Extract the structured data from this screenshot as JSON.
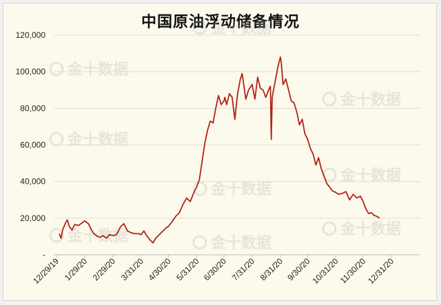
{
  "chart_data": {
    "type": "line",
    "title": "中国原油浮动储备情况",
    "xlabel": "",
    "ylabel": "",
    "y_tick_labels": [
      "-",
      "20,000",
      "40,000",
      "60,000",
      "80,000",
      "100,000",
      "120,000"
    ],
    "y_tick_values": [
      0,
      20000,
      40000,
      60000,
      80000,
      100000,
      120000
    ],
    "ylim": [
      0,
      120000
    ],
    "x_tick_labels": [
      "12/29/19",
      "1/29/20",
      "2/29/20",
      "3/31/20",
      "4/30/20",
      "5/31/20",
      "6/30/20",
      "7/31/20",
      "8/31/20",
      "9/30/20",
      "10/31/20",
      "11/30/20",
      "12/31/20"
    ],
    "grid": "horizontal",
    "line_color": "#b22314",
    "series": [
      {
        "x": [
          "2020-01-01",
          "2020-01-03",
          "2020-01-05",
          "2020-01-08",
          "2020-01-10",
          "2020-01-12",
          "2020-01-15",
          "2020-01-18",
          "2020-01-22",
          "2020-01-25",
          "2020-01-29",
          "2020-02-02",
          "2020-02-05",
          "2020-02-08",
          "2020-02-12",
          "2020-02-15",
          "2020-02-18",
          "2020-02-22",
          "2020-02-25",
          "2020-02-29",
          "2020-03-04",
          "2020-03-08",
          "2020-03-12",
          "2020-03-16",
          "2020-03-20",
          "2020-03-24",
          "2020-03-28",
          "2020-03-31",
          "2020-04-03",
          "2020-04-06",
          "2020-04-10",
          "2020-04-13",
          "2020-04-16",
          "2020-04-20",
          "2020-04-23",
          "2020-04-27",
          "2020-04-30",
          "2020-05-04",
          "2020-05-08",
          "2020-05-12",
          "2020-05-16",
          "2020-05-20",
          "2020-05-24",
          "2020-05-28",
          "2020-05-31",
          "2020-06-03",
          "2020-06-06",
          "2020-06-09",
          "2020-06-12",
          "2020-06-15",
          "2020-06-18",
          "2020-06-21",
          "2020-06-24",
          "2020-06-27",
          "2020-06-30",
          "2020-07-01",
          "2020-07-03",
          "2020-07-06",
          "2020-07-09",
          "2020-07-12",
          "2020-07-15",
          "2020-07-18",
          "2020-07-20",
          "2020-07-22",
          "2020-07-24",
          "2020-07-27",
          "2020-07-31",
          "2020-08-03",
          "2020-08-06",
          "2020-08-09",
          "2020-08-12",
          "2020-08-15",
          "2020-08-18",
          "2020-08-20",
          "2020-08-21",
          "2020-08-22",
          "2020-08-25",
          "2020-08-28",
          "2020-08-31",
          "2020-09-01",
          "2020-09-03",
          "2020-09-06",
          "2020-09-09",
          "2020-09-12",
          "2020-09-15",
          "2020-09-18",
          "2020-09-21",
          "2020-09-24",
          "2020-09-27",
          "2020-09-30",
          "2020-10-03",
          "2020-10-06",
          "2020-10-09",
          "2020-10-12",
          "2020-10-15",
          "2020-10-18",
          "2020-10-21",
          "2020-10-24",
          "2020-10-27",
          "2020-10-31",
          "2020-11-03",
          "2020-11-07",
          "2020-11-11",
          "2020-11-15",
          "2020-11-19",
          "2020-11-23",
          "2020-11-27",
          "2020-11-30",
          "2020-12-03",
          "2020-12-06",
          "2020-12-09",
          "2020-12-12",
          "2020-12-15",
          "2020-12-18"
        ],
        "y": [
          11500,
          9000,
          14000,
          17500,
          19000,
          15500,
          13500,
          16500,
          16000,
          17000,
          18500,
          17000,
          14000,
          11500,
          10000,
          9500,
          10500,
          9000,
          11000,
          10500,
          11000,
          15000,
          17000,
          13000,
          12000,
          11500,
          11500,
          11000,
          13000,
          10500,
          8000,
          6500,
          9000,
          11000,
          12500,
          14500,
          15500,
          18000,
          21000,
          23000,
          27500,
          31000,
          29000,
          34000,
          37000,
          41000,
          51000,
          61000,
          68000,
          73000,
          72000,
          80000,
          87000,
          82000,
          84000,
          86000,
          82000,
          88000,
          86000,
          74000,
          88000,
          96000,
          99000,
          92000,
          85000,
          90000,
          93000,
          85000,
          97000,
          91000,
          90000,
          86000,
          90000,
          92000,
          63000,
          86000,
          94000,
          102000,
          108000,
          105000,
          93000,
          96000,
          90000,
          84000,
          83000,
          78000,
          71000,
          74000,
          66000,
          63000,
          58000,
          55000,
          49000,
          53000,
          47000,
          43000,
          39000,
          37000,
          35000,
          34000,
          33000,
          33500,
          34500,
          30000,
          33000,
          31000,
          32000,
          29000,
          25000,
          22500,
          23000,
          21500,
          21000,
          20000
        ]
      }
    ]
  },
  "watermark": {
    "text": "金十数据",
    "icon": "magnifier-logo-icon"
  }
}
